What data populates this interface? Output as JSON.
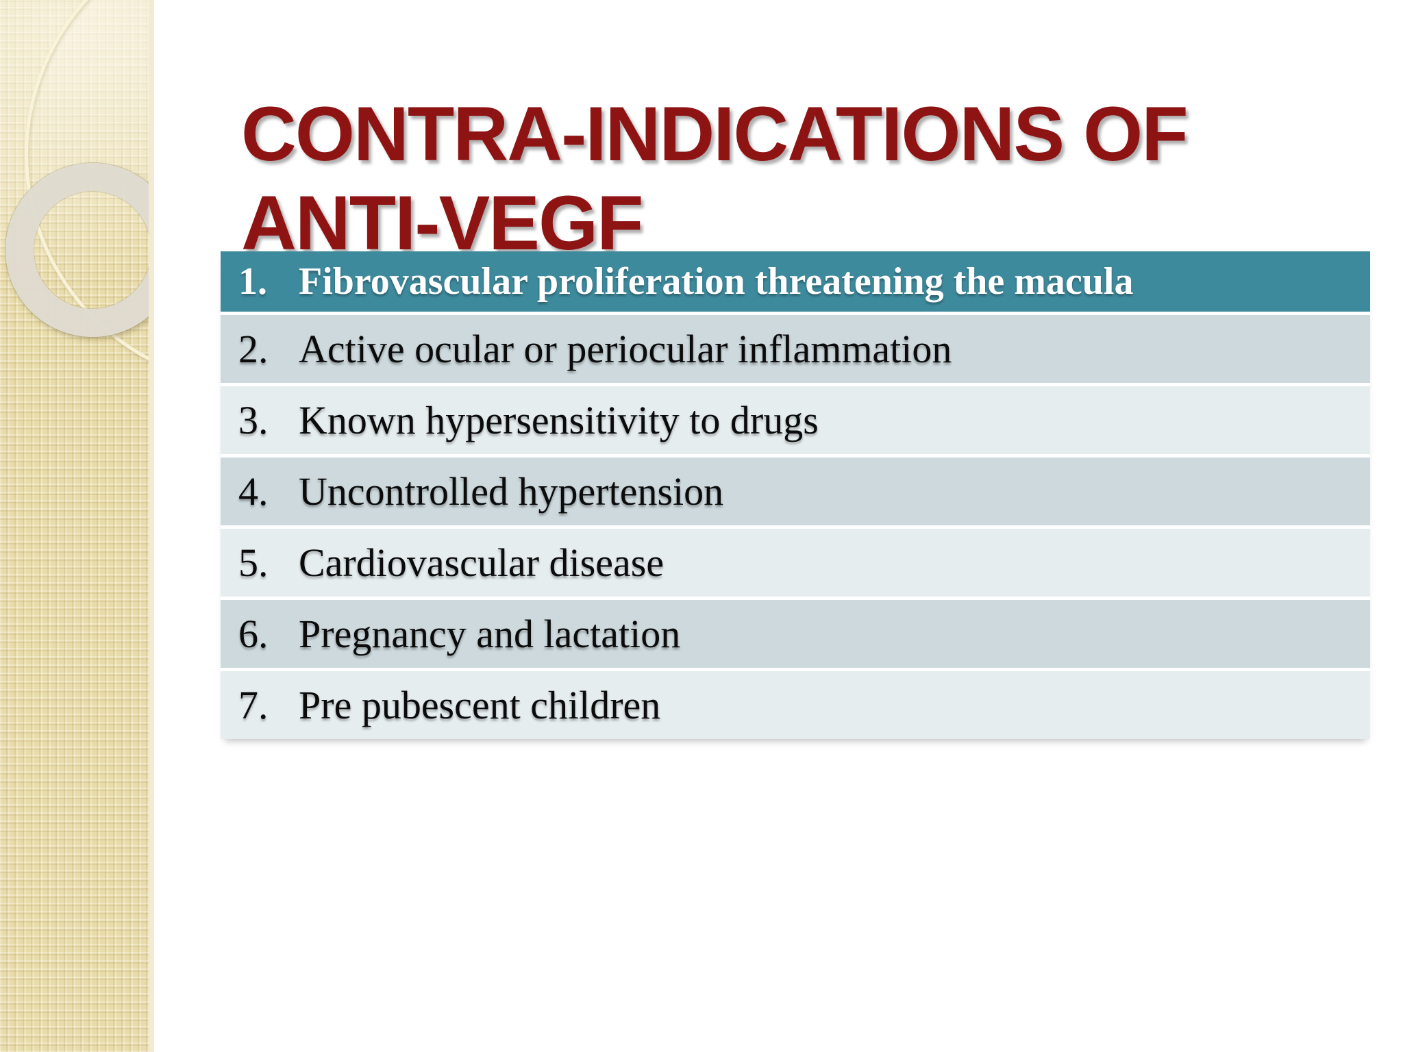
{
  "slide": {
    "title": {
      "line1": "CONTRA-INDICATIONS OF",
      "line2": "ANTI-VEGF"
    },
    "table": {
      "rows": [
        {
          "num": "1.",
          "text": "Fibrovascular proliferation threatening the macula",
          "is_header": true
        },
        {
          "num": "2.",
          "text": "Active ocular or periocular inflammation",
          "is_header": false
        },
        {
          "num": "3.",
          "text": "Known hypersensitivity to drugs",
          "is_header": false
        },
        {
          "num": "4.",
          "text": "Uncontrolled hypertension",
          "is_header": false
        },
        {
          "num": "5.",
          "text": "Cardiovascular disease",
          "is_header": false
        },
        {
          "num": "6.",
          "text": "Pregnancy and lactation",
          "is_header": false
        },
        {
          "num": "7.",
          "text": "Pre pubescent children",
          "is_header": false
        }
      ]
    },
    "colors": {
      "title": "#8e1414",
      "header_bg": "#3e8a9d",
      "row_dark": "#cdd9dd",
      "row_light": "#e6edef",
      "sidebar_bg": "#e9dcab"
    }
  }
}
